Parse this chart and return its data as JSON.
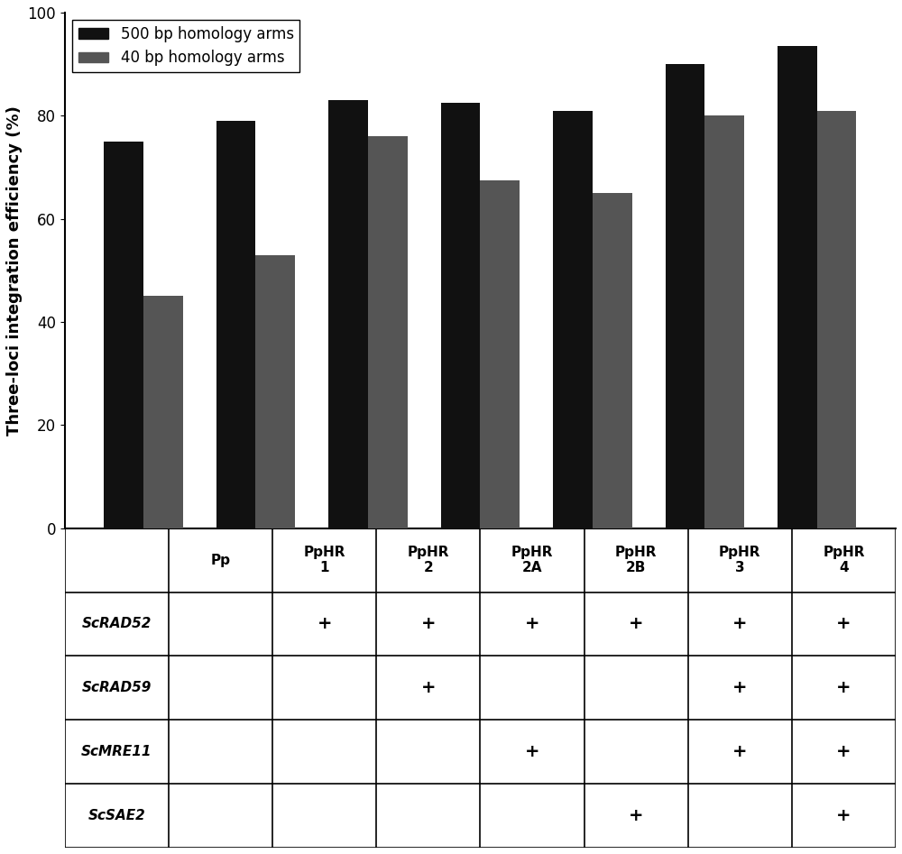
{
  "categories": [
    "Pp",
    "PpHR\n1",
    "PpHR\n2",
    "PpHR\n2A",
    "PpHR\n2B",
    "PpHR\n3",
    "PpHR\n4"
  ],
  "values_500bp": [
    75,
    79,
    83,
    82.5,
    81,
    90,
    93.5
  ],
  "values_40bp": [
    45,
    53,
    76,
    67.5,
    65,
    80,
    81
  ],
  "color_500bp": "#111111",
  "color_40bp": "#555555",
  "ylabel": "Three-loci integration efficiency (%)",
  "ylim": [
    0,
    100
  ],
  "yticks": [
    0,
    20,
    40,
    60,
    80,
    100
  ],
  "legend_500bp": "500 bp homology arms",
  "legend_40bp": "40 bp homology arms",
  "table_rows": [
    "ScRAD52",
    "ScRAD59",
    "ScMRE11",
    "ScSAE2"
  ],
  "table_data": [
    [
      "",
      "+",
      "+",
      "+",
      "+",
      "+",
      "+"
    ],
    [
      "",
      "",
      "+",
      "",
      "",
      "+",
      "+"
    ],
    [
      "",
      "",
      "",
      "+",
      "",
      "+",
      "+"
    ],
    [
      "",
      "",
      "",
      "",
      "+",
      "",
      "+"
    ]
  ],
  "figsize": [
    10.0,
    9.47
  ],
  "dpi": 100
}
